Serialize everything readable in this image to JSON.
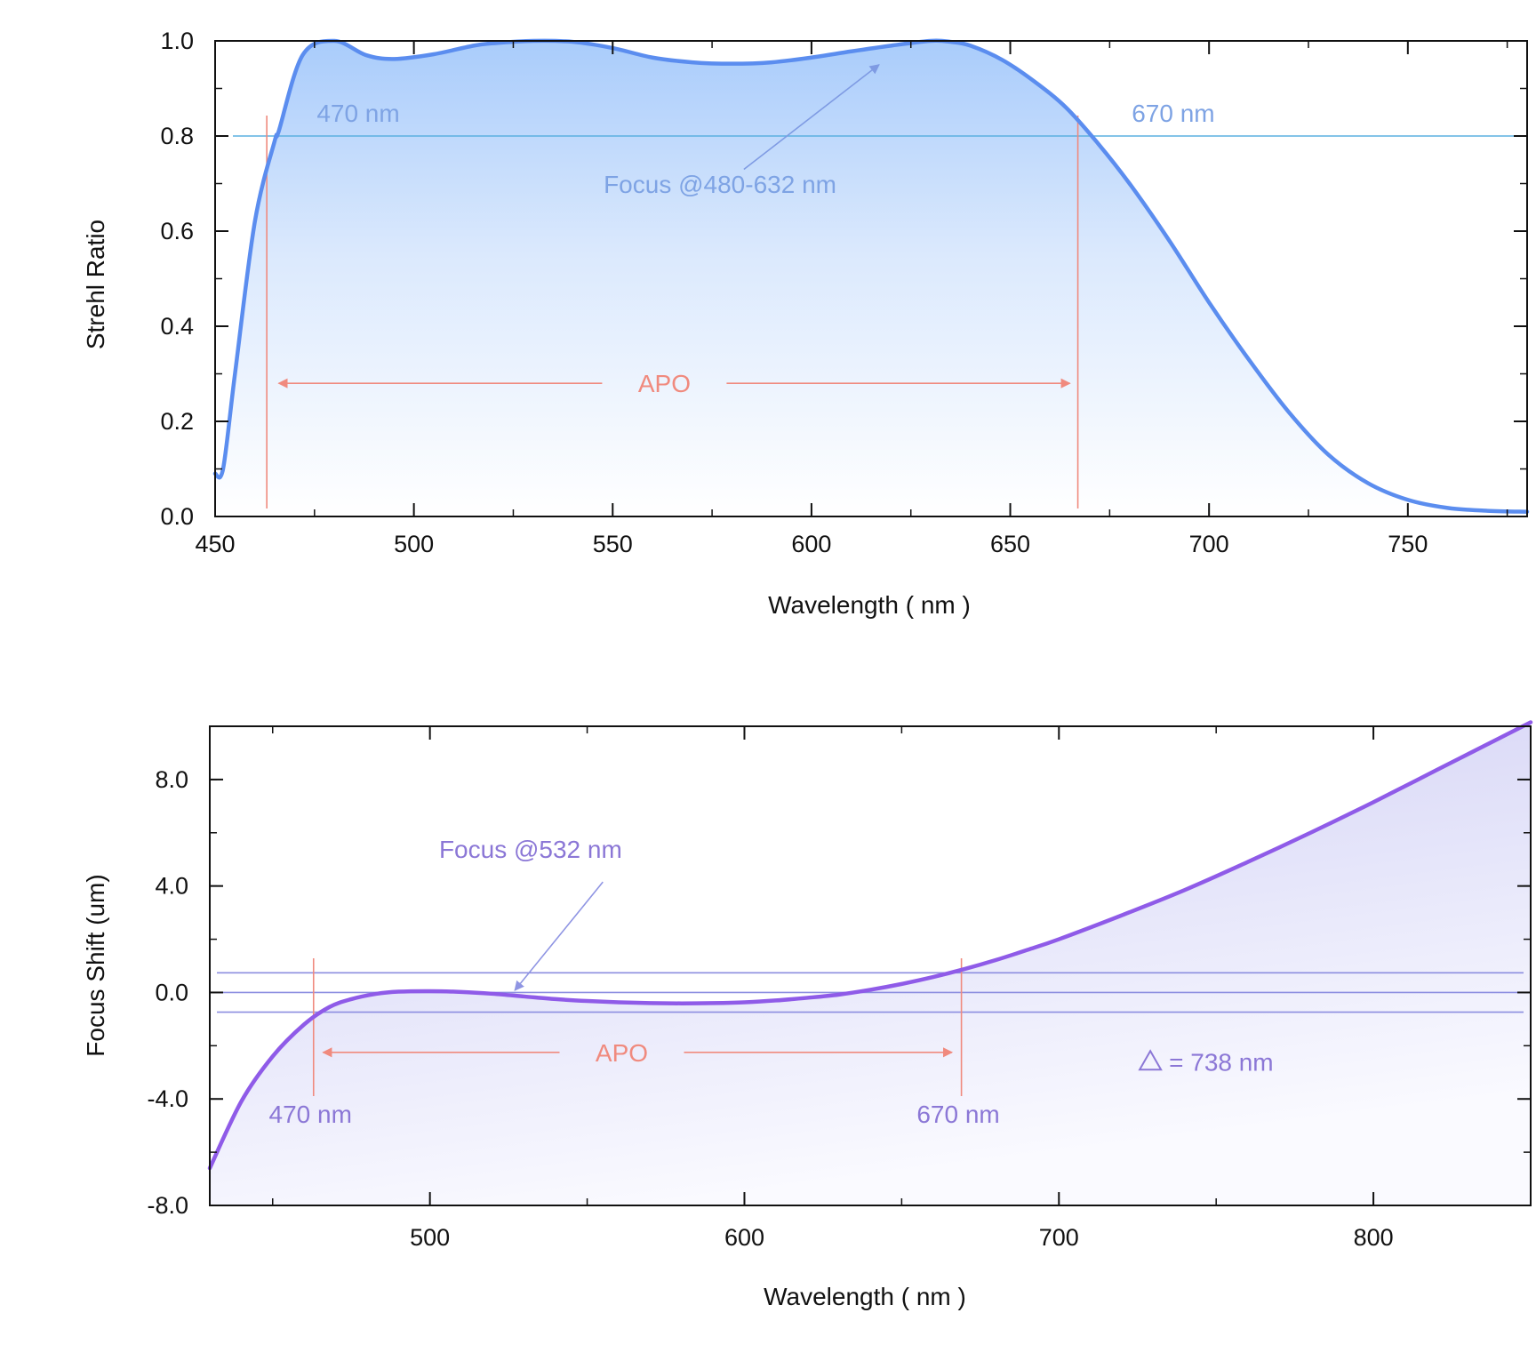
{
  "chart_data": [
    {
      "type": "area",
      "xlabel": "Wavelength ( nm )",
      "ylabel": "Strehl Ratio",
      "xlim": [
        450,
        780
      ],
      "ylim": [
        0,
        1.0
      ],
      "xticks": [
        450,
        500,
        550,
        600,
        650,
        700,
        750
      ],
      "xtick_labels": [
        "450",
        "500",
        "550",
        "600",
        "650",
        "700",
        "750"
      ],
      "yticks": [
        0,
        0.2,
        0.4,
        0.6,
        0.8,
        1.0
      ],
      "ytick_labels": [
        "0.0",
        "0.2",
        "0.4",
        "0.6",
        "0.8",
        "1.0"
      ],
      "grid": false,
      "series": [
        {
          "color": "#5b8def",
          "fill": "gradient",
          "x": [
            450,
            452,
            455,
            460,
            465,
            466,
            472,
            480,
            488,
            495,
            505,
            515,
            520,
            530,
            540,
            550,
            560,
            570,
            580,
            590,
            600,
            610,
            620,
            630,
            635,
            640,
            648,
            656,
            664,
            672,
            680,
            690,
            700,
            710,
            720,
            730,
            740,
            750,
            760,
            770,
            780
          ],
          "y": [
            0.09,
            0.1,
            0.3,
            0.62,
            0.79,
            0.81,
            0.97,
            1.0,
            0.97,
            0.962,
            0.972,
            0.99,
            0.995,
            1.0,
            0.998,
            0.985,
            0.965,
            0.955,
            0.952,
            0.955,
            0.965,
            0.978,
            0.99,
            1.0,
            0.998,
            0.99,
            0.96,
            0.915,
            0.86,
            0.785,
            0.7,
            0.58,
            0.45,
            0.33,
            0.22,
            0.13,
            0.07,
            0.035,
            0.018,
            0.012,
            0.01
          ]
        }
      ],
      "reference_lines": [
        {
          "orientation": "horizontal",
          "y": 0.8,
          "color": "#5bb0e0"
        },
        {
          "orientation": "vertical",
          "x": 463,
          "color": "#f08a7e"
        },
        {
          "orientation": "vertical",
          "x": 667,
          "color": "#f08a7e"
        }
      ],
      "annotations": {
        "left_edge": {
          "text": "470 nm",
          "x": 486,
          "y": 0.83
        },
        "right_edge": {
          "text": "670 nm",
          "x": 691,
          "y": 0.83
        },
        "focus": {
          "text": "Focus @480-632 nm",
          "x": 577,
          "y": 0.68,
          "arrow_from": [
            583,
            0.73
          ],
          "arrow_to": [
            617,
            0.95
          ]
        },
        "apo": {
          "text": "APO",
          "x": 563,
          "y": 0.28,
          "span": [
            466,
            665
          ]
        }
      },
      "colors": {
        "curve": "#5b8def",
        "label": "#7ea3e4",
        "hline": "#5bb0e0",
        "apo": "#f08a7e"
      }
    },
    {
      "type": "area",
      "xlabel": "Wavelength ( nm )",
      "ylabel": "Focus Shift (um)",
      "xlim": [
        430,
        850
      ],
      "ylim": [
        -8,
        10
      ],
      "xticks": [
        500,
        600,
        700,
        800
      ],
      "xtick_labels": [
        "500",
        "600",
        "700",
        "800"
      ],
      "yticks": [
        -8,
        -4,
        0,
        4,
        8
      ],
      "ytick_labels": [
        "-8.0",
        "-4.0",
        "0.0",
        "4.0",
        "8.0"
      ],
      "grid": false,
      "series": [
        {
          "color": "#8f5be8",
          "fill": "gradient",
          "x": [
            430,
            440,
            450,
            460,
            468,
            475,
            483,
            490,
            500,
            510,
            520,
            530,
            540,
            550,
            560,
            570,
            580,
            590,
            600,
            610,
            620,
            630,
            640,
            650,
            660,
            670,
            680,
            690,
            700,
            720,
            740,
            760,
            780,
            800,
            820,
            840,
            850
          ],
          "y": [
            -6.6,
            -4.1,
            -2.4,
            -1.2,
            -0.55,
            -0.25,
            -0.05,
            0.03,
            0.05,
            0.02,
            -0.05,
            -0.15,
            -0.25,
            -0.32,
            -0.37,
            -0.4,
            -0.41,
            -0.4,
            -0.37,
            -0.3,
            -0.2,
            -0.08,
            0.1,
            0.32,
            0.58,
            0.88,
            1.22,
            1.6,
            2.0,
            2.9,
            3.85,
            4.9,
            6.0,
            7.15,
            8.35,
            9.55,
            10.15
          ]
        }
      ],
      "reference_lines": [
        {
          "orientation": "horizontal",
          "y": 0.74,
          "color": "#8c8ee0"
        },
        {
          "orientation": "horizontal",
          "y": 0.0,
          "color": "#8c8ee0"
        },
        {
          "orientation": "horizontal",
          "y": -0.74,
          "color": "#8c8ee0"
        },
        {
          "orientation": "vertical",
          "x": 463,
          "color": "#f08a7e"
        },
        {
          "orientation": "vertical",
          "x": 669,
          "color": "#f08a7e"
        }
      ],
      "annotations": {
        "left_edge": {
          "text": "470 nm",
          "x": 462,
          "y": -4.9
        },
        "right_edge": {
          "text": "670 nm",
          "x": 668,
          "y": -4.9
        },
        "focus": {
          "text": "Focus @532 nm",
          "x": 532,
          "y": 5.05,
          "arrow_from": [
            555,
            4.15
          ],
          "arrow_to": [
            527,
            0.08
          ]
        },
        "apo": {
          "text": "APO",
          "x": 561,
          "y": -2.25,
          "span": [
            466,
            666
          ]
        },
        "delta": {
          "text": "= 738 nm",
          "x": 735,
          "y": -2.6
        }
      },
      "colors": {
        "curve": "#8f5be8",
        "label": "#8b77d6",
        "hline": "#8c8ee0",
        "apo": "#f08a7e"
      }
    }
  ]
}
